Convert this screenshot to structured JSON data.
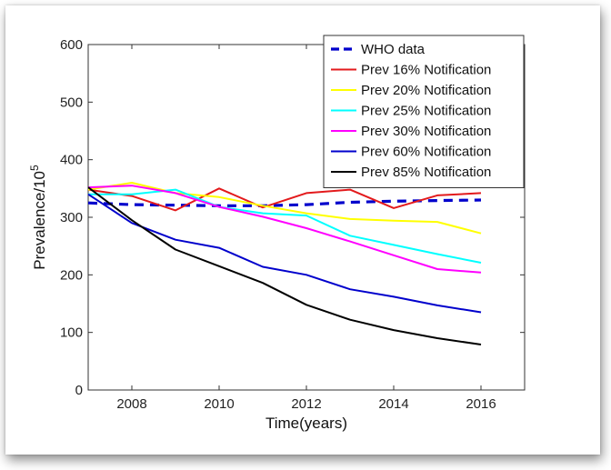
{
  "chart_data": {
    "type": "line",
    "title": "",
    "xlabel": "Time(years)",
    "ylabel": "Prevalence/10",
    "ylabel_superscript": "5",
    "xlim": [
      2007,
      2017
    ],
    "ylim": [
      0,
      600
    ],
    "xticks": [
      2008,
      2010,
      2012,
      2014,
      2016
    ],
    "yticks": [
      0,
      100,
      200,
      300,
      400,
      500,
      600
    ],
    "grid": false,
    "legend_position": "top-right",
    "x": [
      2007,
      2008,
      2009,
      2010,
      2011,
      2012,
      2013,
      2014,
      2015,
      2016
    ],
    "series": [
      {
        "name": "WHO data",
        "color": "#0000cc",
        "dashed": true,
        "values": [
          325,
          322,
          321,
          320,
          320,
          322,
          326,
          328,
          329,
          330
        ]
      },
      {
        "name": "Prev 16% Notification",
        "color": "#e31a1c",
        "dashed": false,
        "values": [
          348,
          337,
          312,
          350,
          317,
          342,
          348,
          316,
          338,
          342
        ]
      },
      {
        "name": "Prev 20% Notification",
        "color": "#ffff00",
        "dashed": false,
        "values": [
          348,
          360,
          342,
          335,
          320,
          307,
          297,
          294,
          292,
          272
        ]
      },
      {
        "name": "Prev 25% Notification",
        "color": "#00ffff",
        "dashed": false,
        "values": [
          340,
          340,
          348,
          318,
          307,
          303,
          268,
          252,
          236,
          221
        ]
      },
      {
        "name": "Prev 30% Notification",
        "color": "#ff00ff",
        "dashed": false,
        "values": [
          352,
          355,
          342,
          318,
          301,
          281,
          258,
          234,
          210,
          204
        ]
      },
      {
        "name": "Prev 60% Notification",
        "color": "#0000cc",
        "dashed": false,
        "values": [
          340,
          290,
          261,
          247,
          214,
          200,
          175,
          162,
          147,
          135
        ]
      },
      {
        "name": "Prev 85% Notification",
        "color": "#000000",
        "dashed": false,
        "values": [
          352,
          295,
          244,
          215,
          186,
          148,
          122,
          104,
          90,
          79
        ]
      }
    ]
  }
}
